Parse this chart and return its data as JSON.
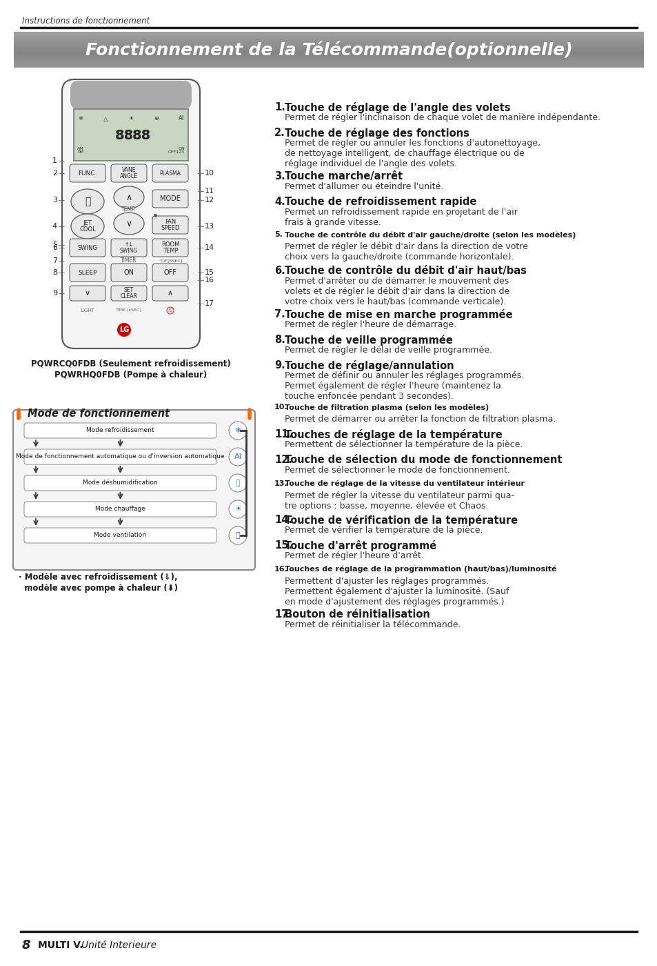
{
  "header_italic": "Instructions de fonctionnement",
  "title": "Fonctionnement de la Télécommande(optionnelle)",
  "footer_number": "8",
  "footer_brand": "MULTI V.",
  "footer_text": "Unité Interieure",
  "model_text1": "PQWRCQ0FDB (Seulement refroidissement)",
  "model_text2": "PQWRHQ0FDB (Pompe à chaleur)",
  "mode_title": "Mode de fonctionnement",
  "mode_items": [
    "Mode refroidissement",
    "Mode de fonctionnement automatique ou d'inversion automatique",
    "Mode déshumidification",
    "Mode chauffage",
    "Mode ventilation"
  ],
  "mode_note1": "· Modèle avec refroidissement (⇓),",
  "mode_note2": "  modèle avec pompe à chaleur (⬇)",
  "items": [
    {
      "num": "1.",
      "bold": "Touche de réglage de l'angle des volets",
      "small_bold": false,
      "text": "Permet de régler l'inclinaison de chaque volet de manière indépendante.",
      "text_lines": 1
    },
    {
      "num": "2.",
      "bold": "Touche de réglage des fonctions",
      "small_bold": false,
      "text": "Permet de régler ou annuler les fonctions d'autonettoyage,\nde nettoyage intelligent, de chauffage électrique ou de\nréglage individuel de l'angle des volets.",
      "text_lines": 3
    },
    {
      "num": "3.",
      "bold": "Touche marche/arrêt",
      "small_bold": false,
      "text": "Permet d'allumer ou éteindre l'unité.",
      "text_lines": 1
    },
    {
      "num": "4.",
      "bold": "Touche de refroidissement rapide",
      "small_bold": false,
      "text": "Permet un refroidissement rapide en projetant de l'air\nfrais à grande vitesse.",
      "text_lines": 2
    },
    {
      "num": "5.",
      "bold": "Touche de contrôle du débit d'air gauche/droite (selon les modèles)",
      "small_bold": true,
      "text": "Permet de régler le débit d'air dans la direction de votre\nchoix vers la gauche/droite (commande horizontale).",
      "text_lines": 2
    },
    {
      "num": "6.",
      "bold": "Touche de contrôle du débit d'air haut/bas",
      "small_bold": false,
      "text": "Permet d'arrêter ou de démarrer le mouvement des\nvolets et de régler le débit d'air dans la direction de\nvotre choix vers le haut/bas (commande verticale).",
      "text_lines": 3
    },
    {
      "num": "7.",
      "bold": "Touche de mise en marche programmée",
      "small_bold": false,
      "text": "Permet de régler l'heure de démarrage.",
      "text_lines": 1
    },
    {
      "num": "8.",
      "bold": "Touche de veille programmée",
      "small_bold": false,
      "text": "Permet de régler le délai de veille programmée.",
      "text_lines": 1
    },
    {
      "num": "9.",
      "bold": "Touche de réglage/annulation",
      "small_bold": false,
      "text": "Permet de définir ou annuler les réglages programmés.\nPermet également de régler l'heure (maintenez la\ntouche enfoncée pendant 3 secondes).",
      "text_lines": 3
    },
    {
      "num": "10.",
      "bold": "Touche de filtration plasma (selon les modèles)",
      "small_bold": true,
      "text": "Permet de démarrer ou arrêter la fonction de filtration plasma.",
      "text_lines": 1
    },
    {
      "num": "11.",
      "bold": "Touches de réglage de la température",
      "small_bold": false,
      "text": "Permettent de sélectionner la température de la pièce.",
      "text_lines": 1
    },
    {
      "num": "12.",
      "bold": "Touche de sélection du mode de fonctionnement",
      "small_bold": false,
      "text": "Permet de sélectionner le mode de fonctionnement.",
      "text_lines": 1
    },
    {
      "num": "13.",
      "bold": "Touche de réglage de la vitesse du ventilateur intérieur",
      "small_bold": true,
      "text": "Permet de régler la vitesse du ventilateur parmi qua-\ntre options : basse, moyenne, élevée et Chaos.",
      "text_lines": 2
    },
    {
      "num": "14.",
      "bold": "Touche de vérification de la température",
      "small_bold": false,
      "text": "Permet de vérifier la température de la pièce.",
      "text_lines": 1
    },
    {
      "num": "15.",
      "bold": "Touche d'arrêt programmé",
      "small_bold": false,
      "text": "Permet de régler l'heure d'arrêt.",
      "text_lines": 1
    },
    {
      "num": "16.",
      "bold": "Touches de réglage de la programmation (haut/bas)/luminosité",
      "small_bold": true,
      "text": "Permettent d'ajuster les réglages programmés.\nPermettent également d'ajuster la luminosité. (Sauf\nen mode d'ajustement des réglages programmés.)",
      "text_lines": 3
    },
    {
      "num": "17.",
      "bold": "Bouton de réinitialisation",
      "small_bold": false,
      "text": "Permet de réinitialiser la télécommande.",
      "text_lines": 1
    }
  ]
}
